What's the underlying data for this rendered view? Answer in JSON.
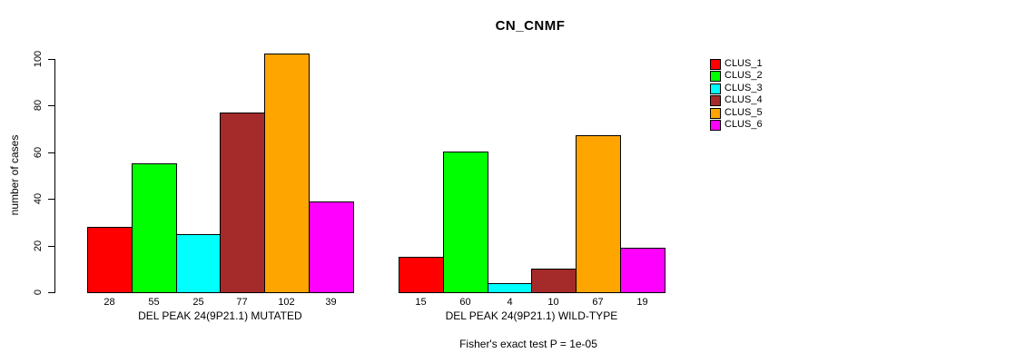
{
  "title": "CN_CNMF",
  "footer": "Fisher's exact test P = 1e-05",
  "legend": {
    "position": "right",
    "items": [
      {
        "label": "CLUS_1",
        "color": "#FF0000"
      },
      {
        "label": "CLUS_2",
        "color": "#00FF00"
      },
      {
        "label": "CLUS_3",
        "color": "#00FFFF"
      },
      {
        "label": "CLUS_4",
        "color": "#A52A2A"
      },
      {
        "label": "CLUS_5",
        "color": "#FFA500"
      },
      {
        "label": "CLUS_6",
        "color": "#FF00FF"
      }
    ]
  },
  "chart_data": {
    "type": "bar",
    "title": "CN_CNMF",
    "ylabel": "number of cases",
    "xlabel": "",
    "ylim": [
      0,
      100
    ],
    "yticks": [
      0,
      20,
      40,
      60,
      80,
      100
    ],
    "grid": false,
    "legend_position": "right",
    "series_names": [
      "CLUS_1",
      "CLUS_2",
      "CLUS_3",
      "CLUS_4",
      "CLUS_5",
      "CLUS_6"
    ],
    "series_colors": [
      "#FF0000",
      "#00FF00",
      "#00FFFF",
      "#A52A2A",
      "#FFA500",
      "#FF00FF"
    ],
    "groups": [
      {
        "label": "DEL PEAK 24(9P21.1) MUTATED",
        "values": [
          28,
          55,
          25,
          77,
          102,
          39
        ]
      },
      {
        "label": "DEL PEAK 24(9P21.1) WILD-TYPE",
        "values": [
          15,
          60,
          4,
          10,
          67,
          19
        ]
      }
    ],
    "bar_value_labels_shown": true,
    "annotation": "Fisher's exact test P = 1e-05"
  }
}
